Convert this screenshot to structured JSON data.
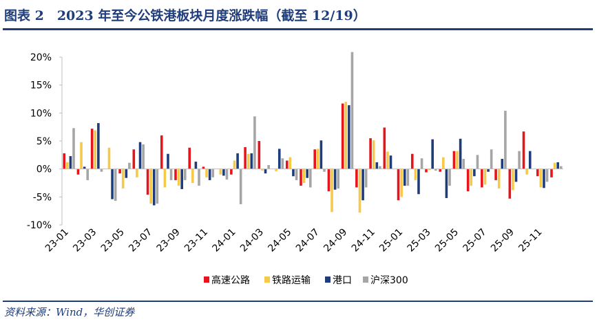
{
  "header": {
    "title": "图表 2　2023 年至今公铁港板块月度涨跌幅（截至 12/19）",
    "source": "资料来源：Wind，华创证券"
  },
  "chart_data": {
    "type": "bar",
    "title": "图表 2　2023 年至今公铁港板块月度涨跌幅（截至 12/19）",
    "xlabel": "",
    "ylabel": "",
    "ylim": [
      -10,
      20
    ],
    "yticks": [
      -10,
      -5,
      0,
      5,
      10,
      15,
      20
    ],
    "ytick_labels": [
      "-10%",
      "-5%",
      "0%",
      "5%",
      "10%",
      "15%",
      "20%"
    ],
    "grid": false,
    "legend_position": "bottom",
    "categories": [
      "23-01",
      "23-02",
      "23-03",
      "23-04",
      "23-05",
      "23-06",
      "23-07",
      "23-08",
      "23-09",
      "23-10",
      "23-11",
      "23-12",
      "24-01",
      "24-02",
      "24-03",
      "24-04",
      "24-05",
      "24-06",
      "24-07",
      "24-08",
      "24-09",
      "24-10",
      "24-11",
      "24-12",
      "25-01",
      "25-02",
      "25-03",
      "25-04",
      "25-05",
      "25-06",
      "25-07",
      "25-08",
      "25-09",
      "25-10",
      "25-11",
      "25-12"
    ],
    "xtick_labels": [
      "23-01",
      "23-03",
      "23-05",
      "23-07",
      "23-09",
      "23-11",
      "24-01",
      "24-03",
      "24-05",
      "24-07",
      "24-09",
      "24-11",
      "25-01",
      "25-03",
      "25-05",
      "25-07",
      "25-09",
      "25-11"
    ],
    "series": [
      {
        "name": "高速公路",
        "color": "#e8141b",
        "values": [
          2.8,
          -1.0,
          7.2,
          0.0,
          -0.8,
          3.5,
          -4.6,
          6.0,
          -2.0,
          3.8,
          0.4,
          0.0,
          -1.0,
          3.9,
          5.0,
          0.0,
          1.5,
          -3.0,
          3.5,
          -4.0,
          11.7,
          -3.3,
          5.5,
          7.4,
          -5.6,
          2.7,
          -0.6,
          -0.5,
          3.2,
          -4.0,
          -3.3,
          -2.0,
          -5.3,
          6.7,
          -1.3,
          -1.5
        ]
      },
      {
        "name": "铁路运输",
        "color": "#f7c948",
        "values": [
          1.2,
          4.8,
          6.9,
          3.8,
          -3.5,
          -1.5,
          -6.2,
          -3.3,
          -3.0,
          -2.5,
          -1.5,
          -1.0,
          1.5,
          2.7,
          -0.3,
          -0.4,
          2.1,
          -2.5,
          3.6,
          -7.7,
          12.0,
          -7.8,
          5.1,
          3.1,
          -5.0,
          -2.0,
          -0.2,
          2.1,
          3.2,
          -3.0,
          -2.8,
          -3.5,
          -3.8,
          -1.0,
          -3.3,
          1.1
        ]
      },
      {
        "name": "港口",
        "color": "#1f3d7a",
        "values": [
          2.3,
          0.4,
          8.2,
          -5.4,
          -1.6,
          4.8,
          -6.5,
          2.7,
          -3.6,
          1.3,
          -2.0,
          -1.2,
          2.8,
          2.8,
          -0.8,
          3.6,
          -1.3,
          -1.6,
          5.1,
          -3.7,
          11.4,
          -5.6,
          1.2,
          2.4,
          -3.0,
          -4.5,
          5.3,
          -5.2,
          5.4,
          -1.3,
          -0.5,
          1.8,
          -2.3,
          3.2,
          -3.4,
          1.2
        ]
      },
      {
        "name": "沪深300",
        "color": "#a6a6a6",
        "values": [
          7.3,
          -2.0,
          -0.5,
          -5.7,
          1.1,
          4.4,
          -6.2,
          -2.0,
          -2.0,
          -3.0,
          -1.5,
          -1.9,
          -6.3,
          9.4,
          0.7,
          1.9,
          -2.0,
          -3.3,
          -0.5,
          -3.5,
          20.9,
          -3.3,
          0.5,
          0.0,
          -3.0,
          1.9,
          -0.3,
          -3.0,
          1.8,
          2.5,
          3.5,
          10.4,
          3.2,
          0.0,
          -2.3,
          0.5
        ]
      }
    ]
  }
}
